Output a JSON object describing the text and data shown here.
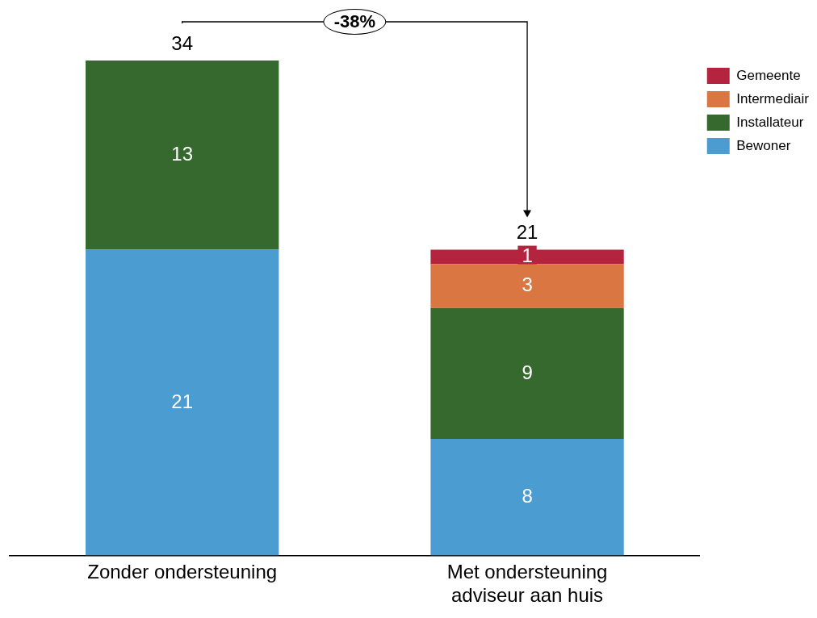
{
  "chart_data": {
    "type": "bar",
    "stacked": true,
    "categories": [
      "Zonder ondersteuning",
      "Met ondersteuning adviseur aan huis"
    ],
    "series": [
      {
        "name": "Bewoner",
        "color": "#4a9cd1",
        "values": [
          21,
          8
        ]
      },
      {
        "name": "Installateur",
        "color": "#35692e",
        "values": [
          13,
          9
        ]
      },
      {
        "name": "Intermediair",
        "color": "#d97642",
        "values": [
          null,
          3
        ]
      },
      {
        "name": "Gemeente",
        "color": "#b5243f",
        "values": [
          null,
          1
        ]
      }
    ],
    "data_labels": true,
    "totals": [
      "34",
      "21"
    ],
    "annotations": [
      "-38%"
    ],
    "legend": "top right",
    "grid": false,
    "tick_labels": "x"
  }
}
